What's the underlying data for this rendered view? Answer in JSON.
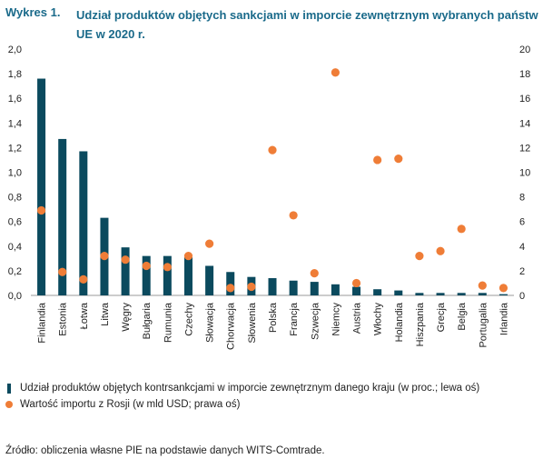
{
  "figure": {
    "label": "Wykres 1.",
    "title": "Udział produktów objętych sankcjami w imporcie zewnętrznym wybranych państw UE w 2020 r."
  },
  "legend": {
    "bars": "Udział produktów objętych kontrsankcjami w imporcie zewnętrznym danego kraju (w proc.; lewa oś)",
    "dots": "Wartość importu z Rosji (w mld USD; prawa oś)"
  },
  "source": "Źródło: obliczenia własne PIE na podstawie danych WITS-Comtrade.",
  "colors": {
    "bar": "#0b4a5e",
    "dot": "#ef7d37",
    "title": "#1a6a8a"
  },
  "chart_data": {
    "type": "bar",
    "categories": [
      "Finlandia",
      "Estonia",
      "Łotwa",
      "Litwa",
      "Węgry",
      "Bułgaria",
      "Rumunia",
      "Czechy",
      "Słowacja",
      "Chorwacja",
      "Słowenia",
      "Polska",
      "Francja",
      "Szwecja",
      "Niemcy",
      "Austria",
      "Włochy",
      "Holandia",
      "Hiszpania",
      "Grecja",
      "Belgia",
      "Portugalia",
      "Irlandia"
    ],
    "series": [
      {
        "type": "bar",
        "axis": "left",
        "values": [
          1.76,
          1.27,
          1.17,
          0.63,
          0.39,
          0.32,
          0.32,
          0.31,
          0.24,
          0.19,
          0.15,
          0.14,
          0.12,
          0.11,
          0.09,
          0.07,
          0.05,
          0.04,
          0.02,
          0.02,
          0.02,
          0.02,
          0.01
        ]
      },
      {
        "type": "scatter",
        "axis": "right",
        "values": [
          6.9,
          1.9,
          1.3,
          3.2,
          2.9,
          2.4,
          2.3,
          3.2,
          4.2,
          0.6,
          0.7,
          11.8,
          6.5,
          1.8,
          18.1,
          1.0,
          11.0,
          11.1,
          3.2,
          3.6,
          5.4,
          0.8,
          0.6
        ]
      }
    ],
    "yleft": {
      "lim": [
        0,
        2.0
      ],
      "ticks": [
        "0,0",
        "0,2",
        "0,4",
        "0,6",
        "0,8",
        "1,0",
        "1,2",
        "1,4",
        "1,6",
        "1,8",
        "2,0"
      ]
    },
    "yright": {
      "lim": [
        0,
        20
      ],
      "ticks": [
        "0",
        "2",
        "4",
        "6",
        "8",
        "10",
        "12",
        "14",
        "16",
        "18",
        "20"
      ]
    },
    "grid": false,
    "legend_position": "bottom"
  }
}
